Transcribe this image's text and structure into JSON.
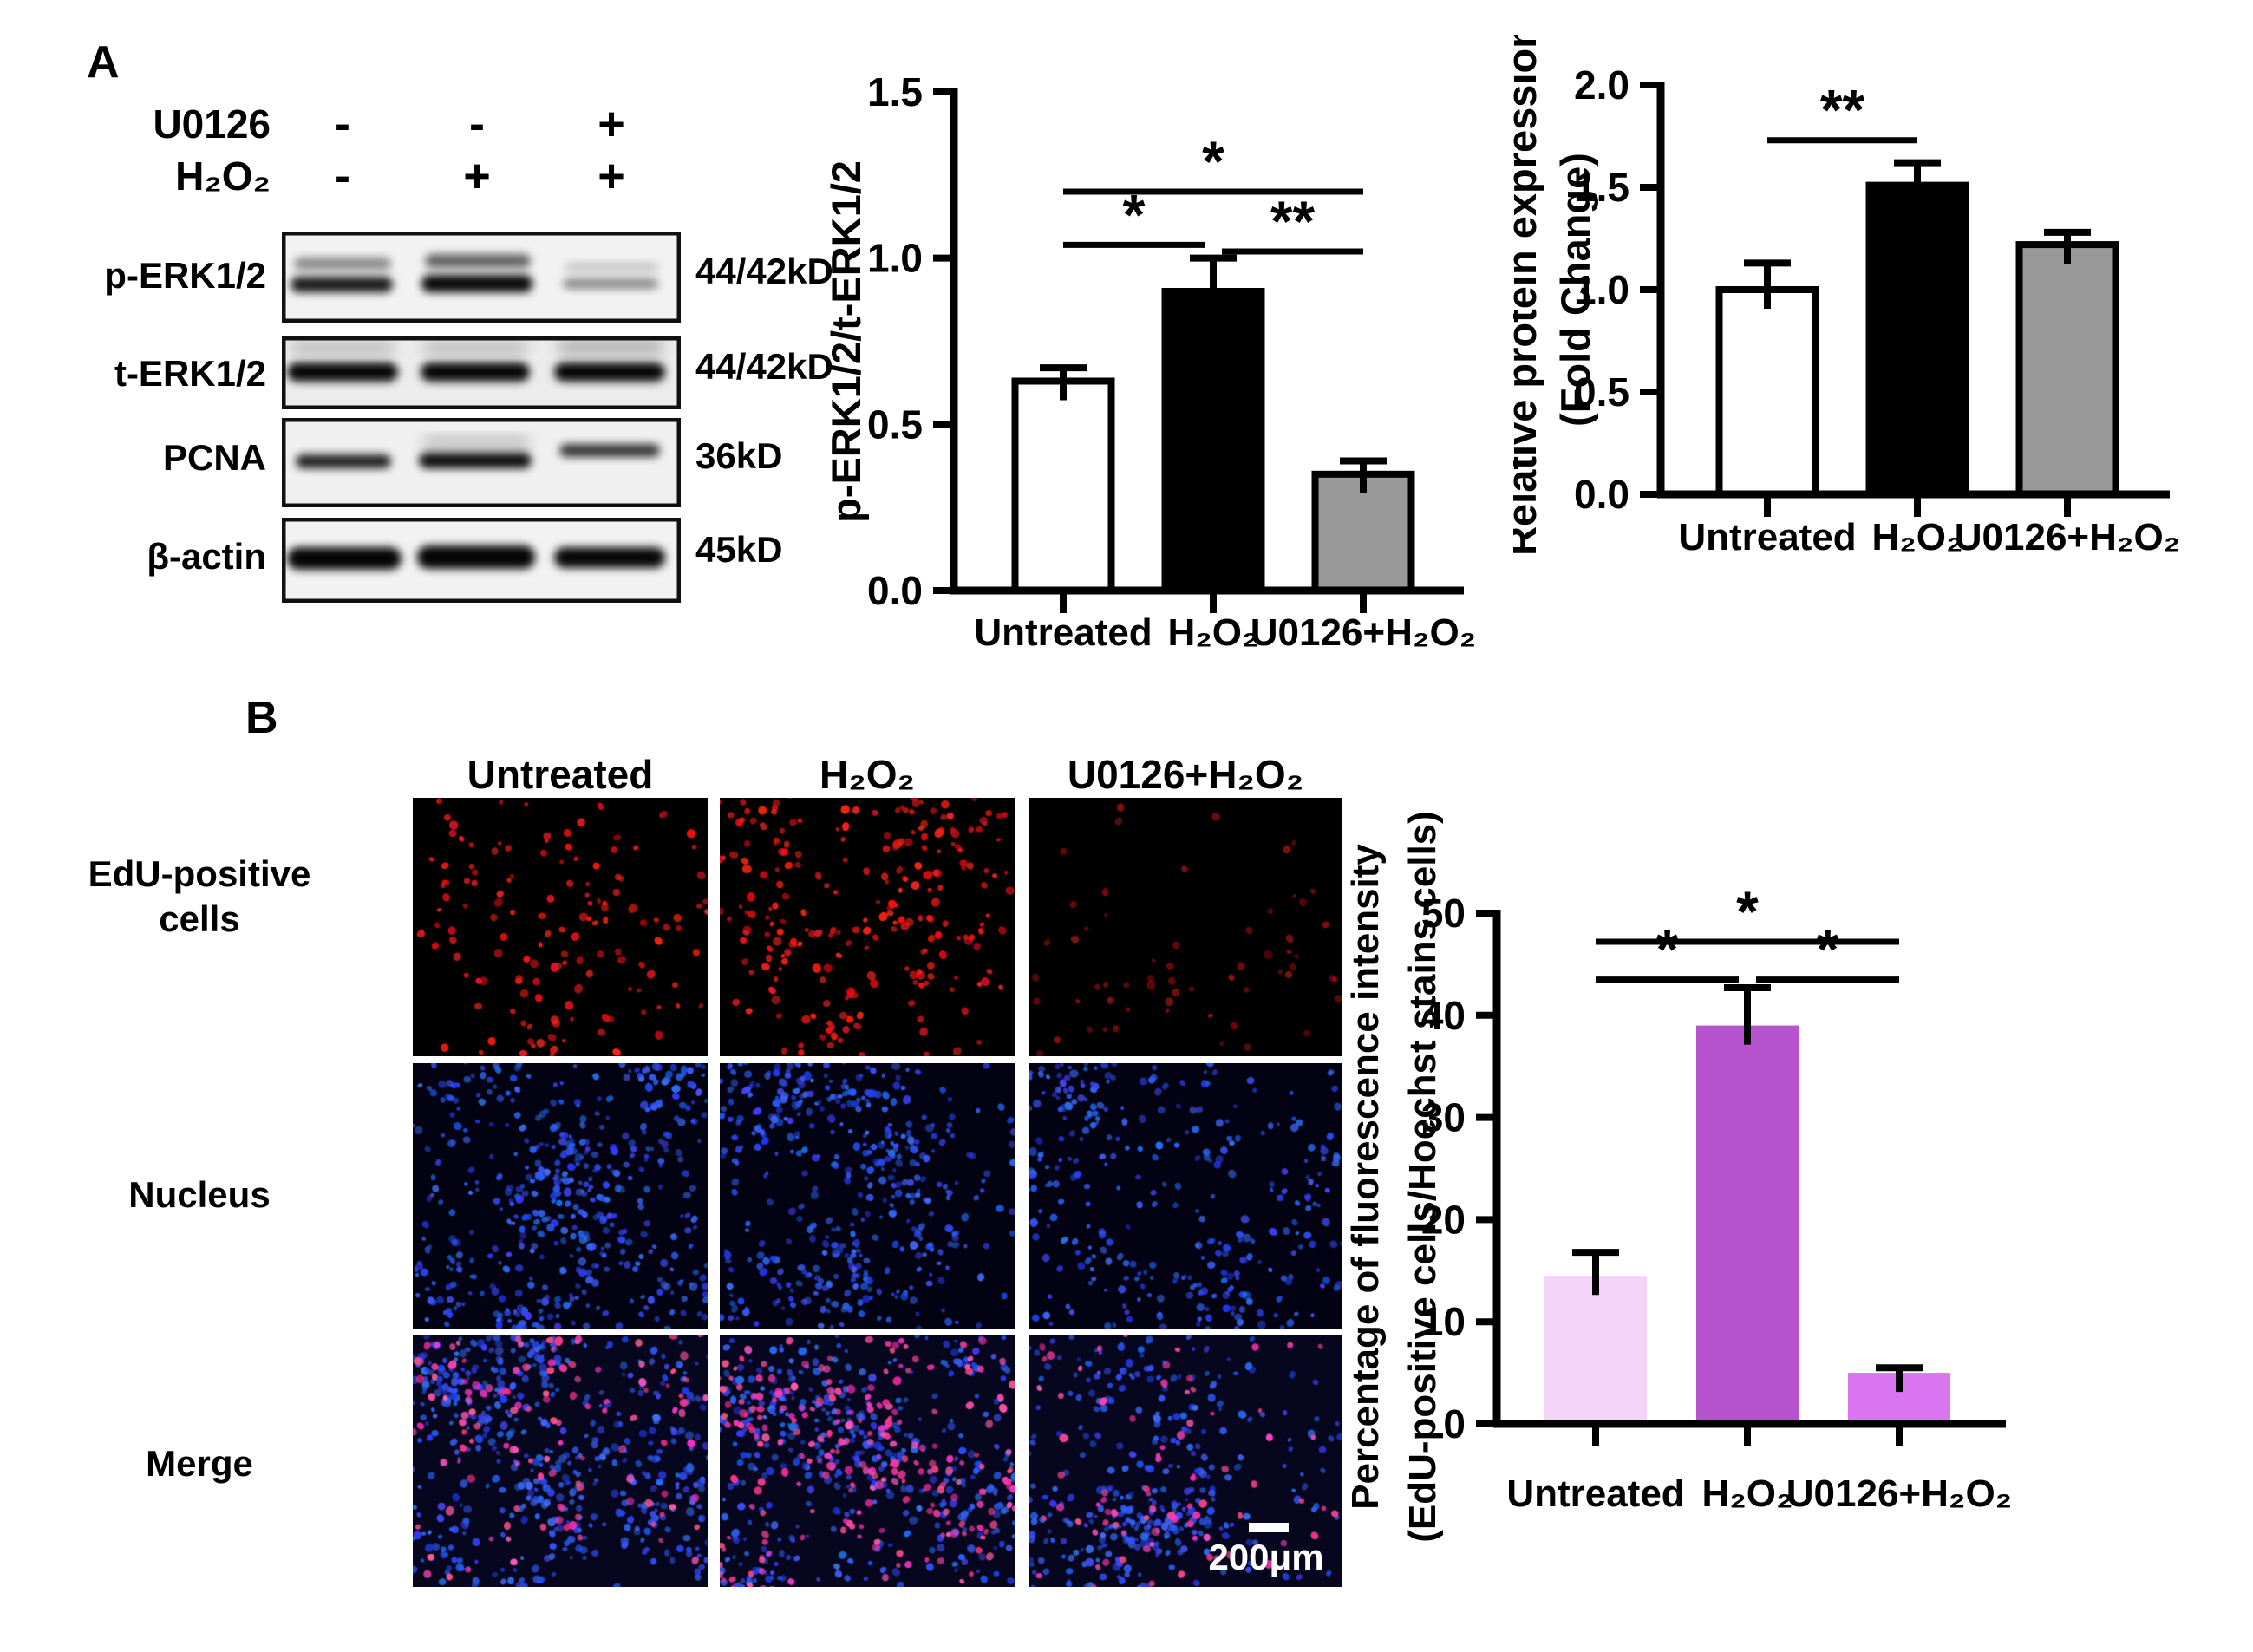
{
  "panel_a": {
    "label": "A",
    "treatments": [
      {
        "name": "U0126",
        "signs": [
          "-",
          "-",
          "+"
        ]
      },
      {
        "name": "H₂O₂",
        "signs": [
          "-",
          "+",
          "+"
        ]
      }
    ],
    "blots": [
      {
        "target": "p-ERK1/2",
        "kd": "44/42kD"
      },
      {
        "target": "t-ERK1/2",
        "kd": "44/42kD"
      },
      {
        "target": "PCNA",
        "kd": "36kD"
      },
      {
        "target": "β-actin",
        "kd": "45kD"
      }
    ]
  },
  "panel_b": {
    "label": "B",
    "column_headers": [
      "Untreated",
      "H₂O₂",
      "U0126+H₂O₂"
    ],
    "row_labels": [
      [
        "EdU-positive",
        "cells"
      ],
      [
        "Nucleus"
      ],
      [
        "Merge"
      ]
    ],
    "scale_bar_label": "200μm",
    "images": [
      {
        "name": "edu-untreated",
        "red": 140,
        "seed": 11
      },
      {
        "name": "edu-h2o2",
        "red": 260,
        "seed": 22
      },
      {
        "name": "edu-u0126-h2o2",
        "red": 62,
        "dim": true,
        "seed": 33
      },
      {
        "name": "nucleus-untreated",
        "blue": 540,
        "seed": 44
      },
      {
        "name": "nucleus-h2o2",
        "blue": 470,
        "seed": 55
      },
      {
        "name": "nucleus-u0126-h2o2",
        "blue": 370,
        "seed": 66
      },
      {
        "name": "merge-untreated",
        "blue": 540,
        "pink": 135,
        "seed": 77
      },
      {
        "name": "merge-h2o2",
        "blue": 470,
        "pink": 250,
        "seed": 88
      },
      {
        "name": "merge-u0126-h2o2",
        "blue": 370,
        "pink": 85,
        "seed": 99
      }
    ]
  },
  "chart_data": [
    {
      "id": "p_erk_ratio",
      "type": "bar",
      "title": "",
      "ylabel_lines": [
        "p-ERK1/2/t-ERK1/2"
      ],
      "categories": [
        "Untreated",
        "H₂O₂",
        "U0126+H₂O₂"
      ],
      "values": [
        0.63,
        0.9,
        0.35
      ],
      "errors": [
        0.04,
        0.1,
        0.04
      ],
      "bar_colors": [
        "#ffffff",
        "#000000",
        "#999999"
      ],
      "bar_outline": "#000000",
      "ylim": [
        0,
        1.5
      ],
      "yticks": [
        0,
        0.5,
        1,
        1.5
      ],
      "ytick_labels": [
        "0.0",
        "0.5",
        "1.0",
        "1.5"
      ],
      "grid": false,
      "legend": "none",
      "significance": [
        {
          "pair": [
            0,
            1
          ],
          "label": "*",
          "height": 1.04
        },
        {
          "pair": [
            1,
            2
          ],
          "label": "**",
          "height": 1.02
        },
        {
          "pair": [
            0,
            2
          ],
          "label": "*",
          "height": 1.2
        }
      ]
    },
    {
      "id": "relative_protein",
      "type": "bar",
      "title": "",
      "ylabel_lines": [
        "Relative protein expression",
        "(Fold Change)"
      ],
      "categories": [
        "Untreated",
        "H₂O₂",
        "U0126+H₂O₂"
      ],
      "values": [
        1.0,
        1.51,
        1.22
      ],
      "errors": [
        0.13,
        0.11,
        0.06
      ],
      "bar_colors": [
        "#ffffff",
        "#000000",
        "#999999"
      ],
      "bar_outline": "#000000",
      "ylim": [
        0,
        2
      ],
      "yticks": [
        0,
        0.5,
        1,
        1.5,
        2
      ],
      "ytick_labels": [
        "0.0",
        "0.5",
        "1.0",
        "1.5",
        "2.0"
      ],
      "grid": false,
      "legend": "none",
      "significance": [
        {
          "pair": [
            0,
            1
          ],
          "label": "**",
          "height": 1.73
        }
      ]
    },
    {
      "id": "edu_percentage",
      "type": "bar",
      "title": "",
      "ylabel_lines": [
        "Percentage of fluorescence intensity",
        "(EdU-positive cells/Hoechst stains cells)"
      ],
      "categories": [
        "Untreated",
        "H₂O₂",
        "U0126+H₂O₂"
      ],
      "values": [
        14.5,
        39,
        5
      ],
      "errors": [
        2.3,
        3.7,
        0.5
      ],
      "bar_colors": [
        "#f4d3f9",
        "#b853cf",
        "#da74f1"
      ],
      "bar_outline": "none",
      "ylim": [
        0,
        50
      ],
      "yticks": [
        0,
        10,
        20,
        30,
        40,
        50
      ],
      "ytick_labels": [
        "0",
        "10",
        "20",
        "30",
        "40",
        "50"
      ],
      "grid": false,
      "legend": "none",
      "significance": [
        {
          "pair": [
            0,
            1
          ],
          "label": "*",
          "height": 43.5
        },
        {
          "pair": [
            1,
            2
          ],
          "label": "*",
          "height": 43.5
        },
        {
          "pair": [
            0,
            2
          ],
          "label": "*",
          "height": 47.2
        }
      ]
    }
  ]
}
